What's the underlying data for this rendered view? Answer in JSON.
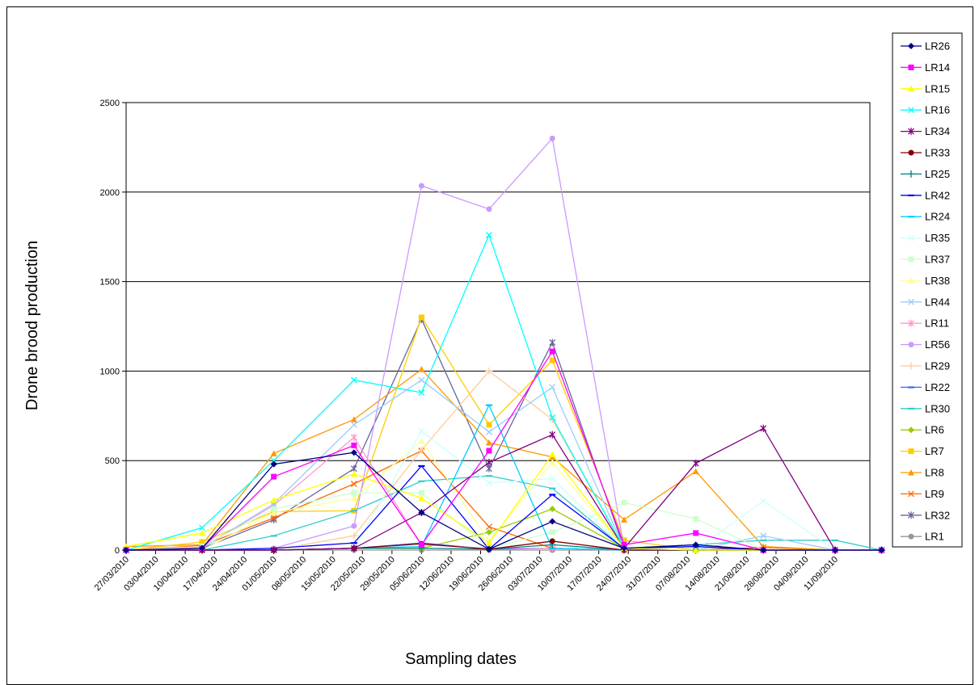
{
  "chart_data": {
    "type": "line",
    "title": "",
    "xlabel": "Sampling dates",
    "ylabel": "Drone brood production",
    "ylim": [
      0,
      2500
    ],
    "yticks": [
      0,
      500,
      1000,
      1500,
      2000,
      2500
    ],
    "grid": "horizontal",
    "legend_position": "right",
    "x_axis_dates": [
      "27/03/2010",
      "03/04/2010",
      "10/04/2010",
      "17/04/2010",
      "24/04/2010",
      "01/05/2010",
      "08/05/2010",
      "15/05/2010",
      "22/05/2010",
      "29/05/2010",
      "05/06/2010",
      "12/06/2010",
      "19/06/2010",
      "26/06/2010",
      "03/07/2010",
      "10/07/2010",
      "17/07/2010",
      "24/07/2010",
      "31/07/2010",
      "07/08/2010",
      "14/08/2010",
      "21/08/2010",
      "28/08/2010",
      "04/09/2010",
      "11/09/2010"
    ],
    "x": [
      "27/03/2010",
      "14/04/2010",
      "01/05/2010",
      "20/05/2010",
      "05/06/2010",
      "21/06/2010",
      "06/07/2010",
      "23/07/2010",
      "09/08/2010",
      "25/08/2010",
      "11/09/2010",
      "22/09/2010"
    ],
    "series": [
      {
        "name": "LR26",
        "color": "#000080",
        "marker": "diamond",
        "values": [
          0,
          10,
          480,
          545,
          210,
          5,
          160,
          10,
          30,
          0,
          0,
          0
        ]
      },
      {
        "name": "LR14",
        "color": "#ff00ff",
        "marker": "square",
        "values": [
          0,
          10,
          410,
          585,
          30,
          555,
          1110,
          30,
          95,
          0,
          0,
          0
        ]
      },
      {
        "name": "LR15",
        "color": "#ffff00",
        "marker": "triangle",
        "values": [
          20,
          95,
          280,
          425,
          290,
          40,
          535,
          10,
          0,
          0,
          0,
          0
        ]
      },
      {
        "name": "LR16",
        "color": "#00ffff",
        "marker": "x",
        "values": [
          0,
          125,
          500,
          950,
          880,
          1760,
          740,
          10,
          0,
          0,
          0,
          0
        ]
      },
      {
        "name": "LR34",
        "color": "#800080",
        "marker": "star",
        "values": [
          0,
          0,
          0,
          10,
          210,
          490,
          645,
          10,
          485,
          680,
          0,
          0
        ]
      },
      {
        "name": "LR33",
        "color": "#800000",
        "marker": "circle",
        "values": [
          0,
          0,
          0,
          10,
          35,
          5,
          50,
          0,
          0,
          0,
          0,
          0
        ]
      },
      {
        "name": "LR25",
        "color": "#008080",
        "marker": "plus",
        "values": [
          0,
          0,
          0,
          10,
          10,
          5,
          30,
          0,
          0,
          0,
          0,
          0
        ]
      },
      {
        "name": "LR42",
        "color": "#0000ff",
        "marker": "dash",
        "values": [
          0,
          0,
          10,
          40,
          470,
          5,
          310,
          10,
          20,
          0,
          0,
          0
        ]
      },
      {
        "name": "LR24",
        "color": "#00ccff",
        "marker": "dash",
        "values": [
          0,
          0,
          0,
          10,
          20,
          810,
          10,
          0,
          0,
          0,
          0,
          0
        ]
      },
      {
        "name": "LR35",
        "color": "#ccffff",
        "marker": "x",
        "values": [
          0,
          0,
          0,
          10,
          665,
          375,
          400,
          10,
          0,
          275,
          0,
          0
        ]
      },
      {
        "name": "LR37",
        "color": "#ccffcc",
        "marker": "square",
        "values": [
          0,
          20,
          230,
          320,
          320,
          10,
          100,
          265,
          175,
          0,
          0,
          0
        ]
      },
      {
        "name": "LR38",
        "color": "#ffff99",
        "marker": "triangle",
        "values": [
          0,
          0,
          210,
          290,
          610,
          50,
          490,
          10,
          0,
          0,
          0,
          0
        ]
      },
      {
        "name": "LR44",
        "color": "#99ccff",
        "marker": "x",
        "values": [
          0,
          10,
          260,
          700,
          950,
          660,
          910,
          10,
          0,
          80,
          0,
          0
        ]
      },
      {
        "name": "LR11",
        "color": "#ff99cc",
        "marker": "star",
        "values": [
          0,
          15,
          250,
          630,
          30,
          10,
          10,
          0,
          0,
          0,
          0,
          0
        ]
      },
      {
        "name": "LR56",
        "color": "#cc99ff",
        "marker": "circle",
        "values": [
          0,
          0,
          10,
          135,
          2035,
          1905,
          2300,
          10,
          0,
          0,
          0,
          0
        ]
      },
      {
        "name": "LR29",
        "color": "#ffcc99",
        "marker": "plus",
        "values": [
          0,
          0,
          0,
          80,
          560,
          1000,
          730,
          10,
          0,
          0,
          0,
          0
        ]
      },
      {
        "name": "LR22",
        "color": "#3366ff",
        "marker": "dash",
        "values": [
          0,
          0,
          0,
          10,
          40,
          5,
          10,
          0,
          0,
          0,
          0,
          0
        ]
      },
      {
        "name": "LR30",
        "color": "#33cccc",
        "marker": "dash",
        "values": [
          0,
          0,
          80,
          220,
          385,
          415,
          345,
          10,
          30,
          55,
          55,
          0
        ]
      },
      {
        "name": "LR6",
        "color": "#99cc00",
        "marker": "diamond",
        "values": [
          0,
          0,
          0,
          10,
          10,
          100,
          230,
          10,
          0,
          0,
          0,
          0
        ]
      },
      {
        "name": "LR7",
        "color": "#ffcc00",
        "marker": "square",
        "values": [
          0,
          45,
          215,
          220,
          1300,
          700,
          1060,
          55,
          0,
          0,
          0,
          0
        ]
      },
      {
        "name": "LR8",
        "color": "#ff9900",
        "marker": "triangle",
        "values": [
          20,
          30,
          540,
          730,
          1010,
          600,
          520,
          170,
          440,
          20,
          0,
          0
        ]
      },
      {
        "name": "LR9",
        "color": "#ff6600",
        "marker": "x",
        "values": [
          0,
          25,
          180,
          370,
          555,
          130,
          10,
          0,
          0,
          15,
          0,
          0
        ]
      },
      {
        "name": "LR32",
        "color": "#666699",
        "marker": "star",
        "values": [
          0,
          10,
          170,
          455,
          1290,
          455,
          1160,
          10,
          0,
          0,
          0,
          0
        ]
      },
      {
        "name": "LR1",
        "color": "#969696",
        "marker": "circle",
        "values": [
          0,
          0,
          0,
          0,
          0,
          0,
          0,
          0,
          0,
          0,
          0,
          0
        ]
      }
    ]
  }
}
